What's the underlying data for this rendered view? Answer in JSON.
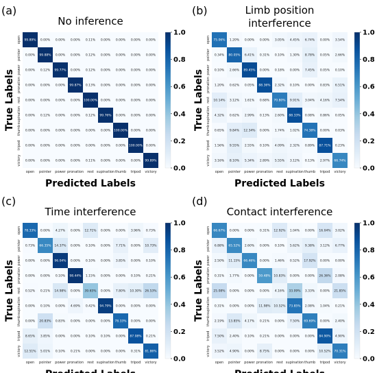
{
  "colors": {
    "low": "#f7fbff",
    "high": "#08306b"
  },
  "chart_data": [
    {
      "type": "heatmap",
      "panel": "(a)",
      "title": "No inference",
      "xlabel": "Predicted Labels",
      "ylabel": "True Labels",
      "categories": [
        "open",
        "pointer",
        "power",
        "pronation",
        "rest",
        "supination",
        "thumb",
        "tripod",
        "victory"
      ],
      "colorbar": {
        "ticks": [
          "0.0",
          "0.2",
          "0.4",
          "0.6",
          "0.8",
          "1.0"
        ],
        "range": [
          0,
          1
        ]
      },
      "values": [
        [
          99.89,
          0.0,
          0.0,
          0.0,
          0.11,
          0.0,
          0.0,
          0.0,
          0.0
        ],
        [
          0.0,
          99.88,
          0.0,
          0.0,
          0.12,
          0.0,
          0.0,
          0.0,
          0.0
        ],
        [
          0.0,
          0.12,
          99.77,
          0.0,
          0.12,
          0.0,
          0.0,
          0.0,
          0.0
        ],
        [
          0.0,
          0.0,
          0.0,
          99.87,
          0.13,
          0.0,
          0.0,
          0.0,
          0.0
        ],
        [
          0.0,
          0.0,
          0.0,
          0.0,
          100.0,
          0.0,
          0.0,
          0.0,
          0.0
        ],
        [
          0.0,
          0.12,
          0.0,
          0.0,
          0.12,
          99.76,
          0.0,
          0.0,
          0.0
        ],
        [
          0.0,
          0.0,
          0.0,
          0.0,
          0.0,
          0.0,
          100.0,
          0.0,
          0.0
        ],
        [
          0.0,
          0.0,
          0.0,
          0.0,
          0.0,
          0.0,
          0.0,
          100.0,
          0.0
        ],
        [
          0.0,
          0.0,
          0.0,
          0.0,
          0.11,
          0.0,
          0.0,
          0.0,
          99.89
        ]
      ]
    },
    {
      "type": "heatmap",
      "panel": "(b)",
      "title": "Limb position interference",
      "xlabel": "Predicted Labels",
      "ylabel": "True Labels",
      "categories": [
        "open",
        "pointer",
        "power",
        "pronation",
        "rest",
        "supination",
        "thumb",
        "tripod",
        "victory"
      ],
      "colorbar": {
        "ticks": [
          "0.0",
          "0.2",
          "0.4",
          "0.6",
          "0.8",
          "1.0"
        ],
        "range": [
          0,
          1
        ]
      },
      "values": [
        [
          75.06,
          1.2,
          0.0,
          0.0,
          3.05,
          4.45,
          6.74,
          0.0,
          3.54
        ],
        [
          0.34,
          80.05,
          6.41,
          0.31,
          0.1,
          1.3,
          8.78,
          0.05,
          2.66
        ],
        [
          0.1,
          2.66,
          89.45,
          0.0,
          0.18,
          0.0,
          7.45,
          0.05,
          0.1
        ],
        [
          1.2,
          0.62,
          0.05,
          88.36,
          2.32,
          0.1,
          0.0,
          0.83,
          6.51
        ],
        [
          10.14,
          3.12,
          1.61,
          0.68,
          70.8,
          9.91,
          3.04,
          4.16,
          7.54
        ],
        [
          4.32,
          0.62,
          2.99,
          0.13,
          2.6,
          88.33,
          0.08,
          0.86,
          0.05
        ],
        [
          0.65,
          9.84,
          12.34,
          0.0,
          1.74,
          1.02,
          74.38,
          0.0,
          0.03
        ],
        [
          1.56,
          9.55,
          2.55,
          0.1,
          4.09,
          2.32,
          0.89,
          87.71,
          0.23
        ],
        [
          3.16,
          8.1,
          5.34,
          2.89,
          5.55,
          3.12,
          0.13,
          2.97,
          66.74
        ]
      ]
    },
    {
      "type": "heatmap",
      "panel": "(c)",
      "title": "Time interference",
      "xlabel": "Predicted Labels",
      "ylabel": "True Labels",
      "categories": [
        "open",
        "pointer",
        "power",
        "pronation",
        "rest",
        "supination",
        "thumb",
        "tripod",
        "victory"
      ],
      "colorbar": {
        "ticks": [
          "0.0",
          "0.2",
          "0.4",
          "0.6",
          "0.8",
          "1.0"
        ],
        "range": [
          0,
          1
        ]
      },
      "values": [
        [
          78.33,
          0.0,
          4.27,
          0.0,
          12.71,
          0.0,
          0.0,
          3.96,
          0.73
        ],
        [
          0.73,
          66.35,
          14.37,
          0.0,
          0.1,
          0.0,
          7.71,
          0.0,
          10.73
        ],
        [
          0.0,
          0.0,
          96.04,
          0.0,
          0.1,
          0.0,
          3.85,
          0.0,
          0.1
        ],
        [
          0.0,
          0.0,
          0.1,
          98.44,
          1.15,
          0.0,
          0.0,
          0.1,
          0.21
        ],
        [
          0.52,
          0.21,
          14.98,
          0.0,
          39.65,
          0.0,
          7.8,
          10.3,
          26.53
        ],
        [
          0.0,
          0.1,
          0.0,
          4.69,
          0.42,
          94.79,
          0.0,
          0.0,
          0.0
        ],
        [
          0.0,
          20.83,
          0.83,
          0.0,
          0.0,
          0.0,
          78.33,
          0.0,
          0.0
        ],
        [
          8.65,
          3.85,
          0.0,
          0.0,
          0.1,
          0.1,
          0.0,
          87.08,
          0.21
        ],
        [
          12.51,
          5.01,
          0.1,
          0.21,
          0.0,
          0.0,
          0.0,
          0.31,
          81.86
        ]
      ]
    },
    {
      "type": "heatmap",
      "panel": "(d)",
      "title": "Contact interference",
      "xlabel": "Predicted Labels",
      "ylabel": "True Labels",
      "categories": [
        "open",
        "pointer",
        "power",
        "pronation",
        "rest",
        "supination",
        "thumb",
        "tripod",
        "victory"
      ],
      "colorbar": {
        "ticks": [
          "0.0",
          "0.2",
          "0.4",
          "0.6",
          "0.8",
          "1.0"
        ],
        "range": [
          0,
          1
        ]
      },
      "values": [
        [
          66.67,
          0.0,
          0.0,
          0.31,
          12.92,
          1.04,
          0.0,
          16.04,
          3.02
        ],
        [
          6.88,
          65.52,
          2.6,
          0.0,
          0.1,
          5.62,
          9.38,
          3.12,
          6.77
        ],
        [
          2.5,
          11.15,
          66.46,
          0.0,
          1.46,
          0.52,
          17.92,
          0.0,
          0.0
        ],
        [
          0.31,
          1.77,
          0.0,
          59.48,
          10.83,
          0.0,
          0.0,
          26.36,
          2.08
        ],
        [
          25.08,
          0.0,
          0.0,
          0.0,
          4.16,
          33.09,
          3.33,
          0.0,
          21.85
        ],
        [
          0.31,
          0.0,
          0.0,
          11.98,
          10.52,
          73.85,
          2.08,
          1.04,
          0.21
        ],
        [
          2.19,
          13.85,
          4.17,
          0.21,
          0.0,
          7.5,
          69.69,
          0.0,
          2.4
        ],
        [
          7.5,
          2.4,
          0.1,
          0.21,
          0.0,
          0.0,
          0.0,
          84.9,
          4.9
        ],
        [
          3.52,
          4.9,
          0.0,
          8.75,
          0.0,
          0.0,
          0.0,
          10.52,
          70.31
        ]
      ]
    }
  ]
}
